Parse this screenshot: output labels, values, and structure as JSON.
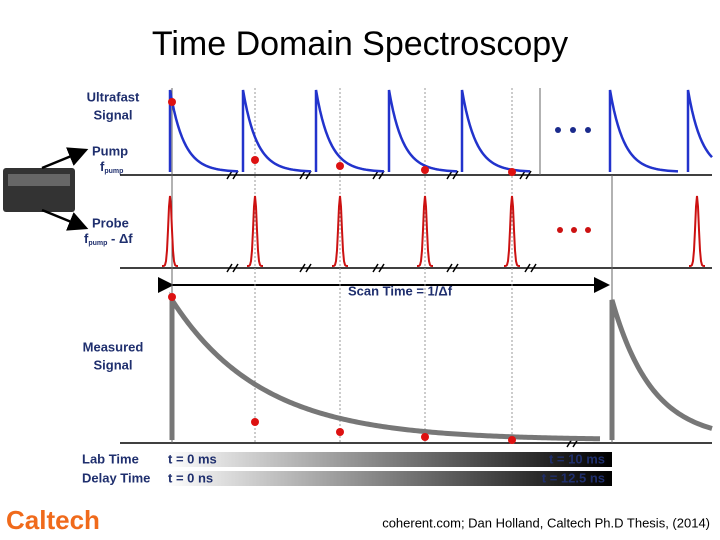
{
  "title": "Time Domain Spectroscopy",
  "signals": {
    "ultrafast": {
      "lines": [
        "Ultrafast",
        "Signal"
      ]
    },
    "pump": {
      "label": "Pump",
      "symbol": "f",
      "subscript": "pump"
    },
    "probe": {
      "label": "Probe",
      "symbol": "f",
      "subscript": "pump",
      "suffix": " - Δf"
    },
    "scan_time": "Scan Time = 1/Δf",
    "measured": {
      "lines": [
        "Measured",
        "Signal"
      ]
    }
  },
  "time_bars": [
    {
      "label": "Lab Time",
      "start": "t = 0 ms",
      "end": "t = 10 ms"
    },
    {
      "label": "Delay Time",
      "start": "t = 0 ns",
      "end": "t = 12.5 ns"
    }
  ],
  "footer": {
    "logo": "Caltech",
    "citation": "coherent.com; Dan Holland, Caltech Ph.D Thesis, (2014)"
  }
}
